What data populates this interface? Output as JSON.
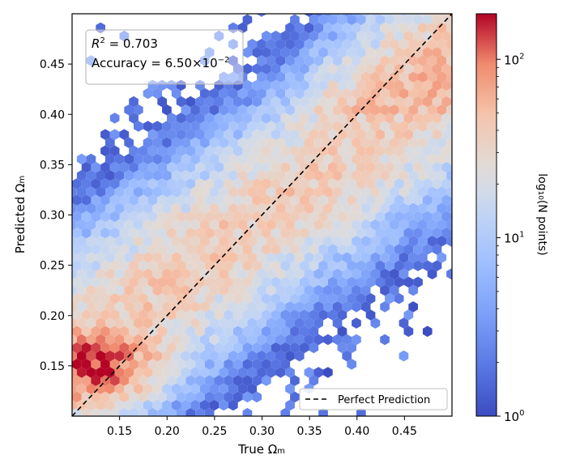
{
  "chart_data": {
    "type": "heatmap",
    "subtype": "hexbin",
    "xlabel": "True Ωm",
    "ylabel": "Predicted Ωm",
    "xlim": [
      0.1,
      0.5
    ],
    "ylim": [
      0.1,
      0.5
    ],
    "xticks": [
      0.15,
      0.2,
      0.25,
      0.3,
      0.35,
      0.4,
      0.45
    ],
    "yticks": [
      0.15,
      0.2,
      0.25,
      0.3,
      0.35,
      0.4,
      0.45
    ],
    "xtick_labels": [
      "0.15",
      "0.20",
      "0.25",
      "0.30",
      "0.35",
      "0.40",
      "0.45"
    ],
    "ytick_labels": [
      "0.15",
      "0.20",
      "0.25",
      "0.30",
      "0.35",
      "0.40",
      "0.45"
    ],
    "grid": false,
    "colormap": "coolwarm",
    "color_scale": "log",
    "color_range": [
      1,
      180
    ],
    "colorbar": {
      "label": "log₁₀(N points)",
      "tick_values": [
        1,
        10,
        100
      ],
      "tick_labels": [
        "10⁰",
        "10¹",
        "10²"
      ]
    },
    "annotation": {
      "r2_label": "R² = 0.703",
      "accuracy_label": "Accuracy = 6.50×10⁻²",
      "position": "top-left"
    },
    "reference_line": {
      "name": "Perfect Prediction",
      "style": "dashed",
      "color": "#000000",
      "from": [
        0.1,
        0.1
      ],
      "to": [
        0.5,
        0.5
      ]
    },
    "legend": {
      "entries": [
        "Perfect Prediction"
      ],
      "position": "bottom-right"
    },
    "density_model": {
      "description": "Predictions concentrated along the diagonal with regression toward the mean; peak density near true 0.12, predicted 0.15",
      "peak": {
        "x": 0.12,
        "y": 0.15,
        "count": 180
      },
      "mean_pull": 0.3,
      "gridsize": 30
    }
  },
  "labels": {
    "r2_prefix": "R",
    "r2_sup": "2",
    "r2_rest": " = 0.703",
    "acc_text": "Accuracy = 6.50×10",
    "acc_sup": "−2",
    "xlabel_main": "True Ω",
    "xlabel_sub": "m",
    "ylabel_main": "Predicted Ω",
    "ylabel_sub": "m",
    "cbar_label": "log₁₀(N points)",
    "cbar_ticks": [
      {
        "base": "10",
        "exp": "0"
      },
      {
        "base": "10",
        "exp": "1"
      },
      {
        "base": "10",
        "exp": "2"
      }
    ],
    "legend_label": "Perfect Prediction"
  }
}
